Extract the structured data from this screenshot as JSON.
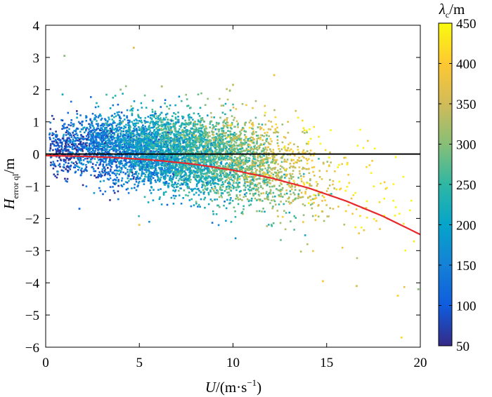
{
  "chart_data": {
    "type": "scatter",
    "title": "",
    "xlabel": "U/(m·s⁻¹)",
    "xlabel_parts": {
      "var": "U",
      "unit": "/(m·s",
      "sup": "−1",
      "close": ")"
    },
    "ylabel": "H_error ql/m",
    "ylabel_parts": {
      "var": "H",
      "sub": "error ql",
      "unit": "/m"
    },
    "xlim": [
      0,
      20
    ],
    "ylim": [
      -6,
      4
    ],
    "x_ticks": [
      0,
      5,
      10,
      15,
      20
    ],
    "x_tick_labels": [
      "0",
      "5",
      "10",
      "15",
      "20"
    ],
    "y_ticks": [
      -6,
      -5,
      -4,
      -3,
      -2,
      -1,
      0,
      1,
      2,
      3,
      4
    ],
    "y_tick_labels": [
      "−6",
      "−5",
      "−4",
      "−3",
      "−2",
      "−1",
      "0",
      "1",
      "2",
      "3",
      "4"
    ],
    "grid": false,
    "colorbar": {
      "label": "λc/m",
      "label_parts": {
        "var": "λ",
        "sub": "c",
        "unit": "/m"
      },
      "range": [
        50,
        450
      ],
      "ticks": [
        50,
        100,
        150,
        200,
        250,
        300,
        350,
        400,
        450
      ],
      "tick_labels": [
        "50",
        "100",
        "150",
        "200",
        "250",
        "300",
        "350",
        "400",
        "450"
      ],
      "colormap": "parula",
      "colors": [
        "#352a87",
        "#0f5cdd",
        "#1481d6",
        "#06a4ca",
        "#2eb7a4",
        "#87bf77",
        "#d1bb59",
        "#fec832",
        "#f9fb0e"
      ]
    },
    "reference_line": {
      "y": 0,
      "color": "#000000"
    },
    "fit_curve": {
      "color": "#e8272b",
      "x": [
        0,
        2,
        4,
        6,
        8,
        10,
        12,
        14,
        16,
        18,
        20
      ],
      "y": [
        -0.05,
        -0.07,
        -0.12,
        -0.2,
        -0.32,
        -0.5,
        -0.74,
        -1.05,
        -1.45,
        -1.93,
        -2.5
      ]
    },
    "scatter_description_value_count": 6000,
    "outliers": [
      {
        "x": 1.0,
        "y": 3.05,
        "c": 300
      },
      {
        "x": 4.7,
        "y": 3.3,
        "c": 360
      },
      {
        "x": 19.0,
        "y": -5.7,
        "c": 420
      },
      {
        "x": 12.2,
        "y": 2.45,
        "c": 380
      },
      {
        "x": 10.0,
        "y": 2.15,
        "c": 340
      },
      {
        "x": 4.0,
        "y": 2.0,
        "c": 300
      },
      {
        "x": 6.2,
        "y": 2.1,
        "c": 320
      },
      {
        "x": 18.8,
        "y": -4.4,
        "c": 410
      },
      {
        "x": 14.8,
        "y": -3.95,
        "c": 400
      },
      {
        "x": 19.9,
        "y": -4.2,
        "c": 300
      },
      {
        "x": 16.6,
        "y": -4.1,
        "c": 360
      },
      {
        "x": 5.0,
        "y": -2.2,
        "c": 380
      },
      {
        "x": 1.8,
        "y": -1.7,
        "c": 120
      },
      {
        "x": 0.9,
        "y": 1.85,
        "c": 220
      }
    ]
  }
}
